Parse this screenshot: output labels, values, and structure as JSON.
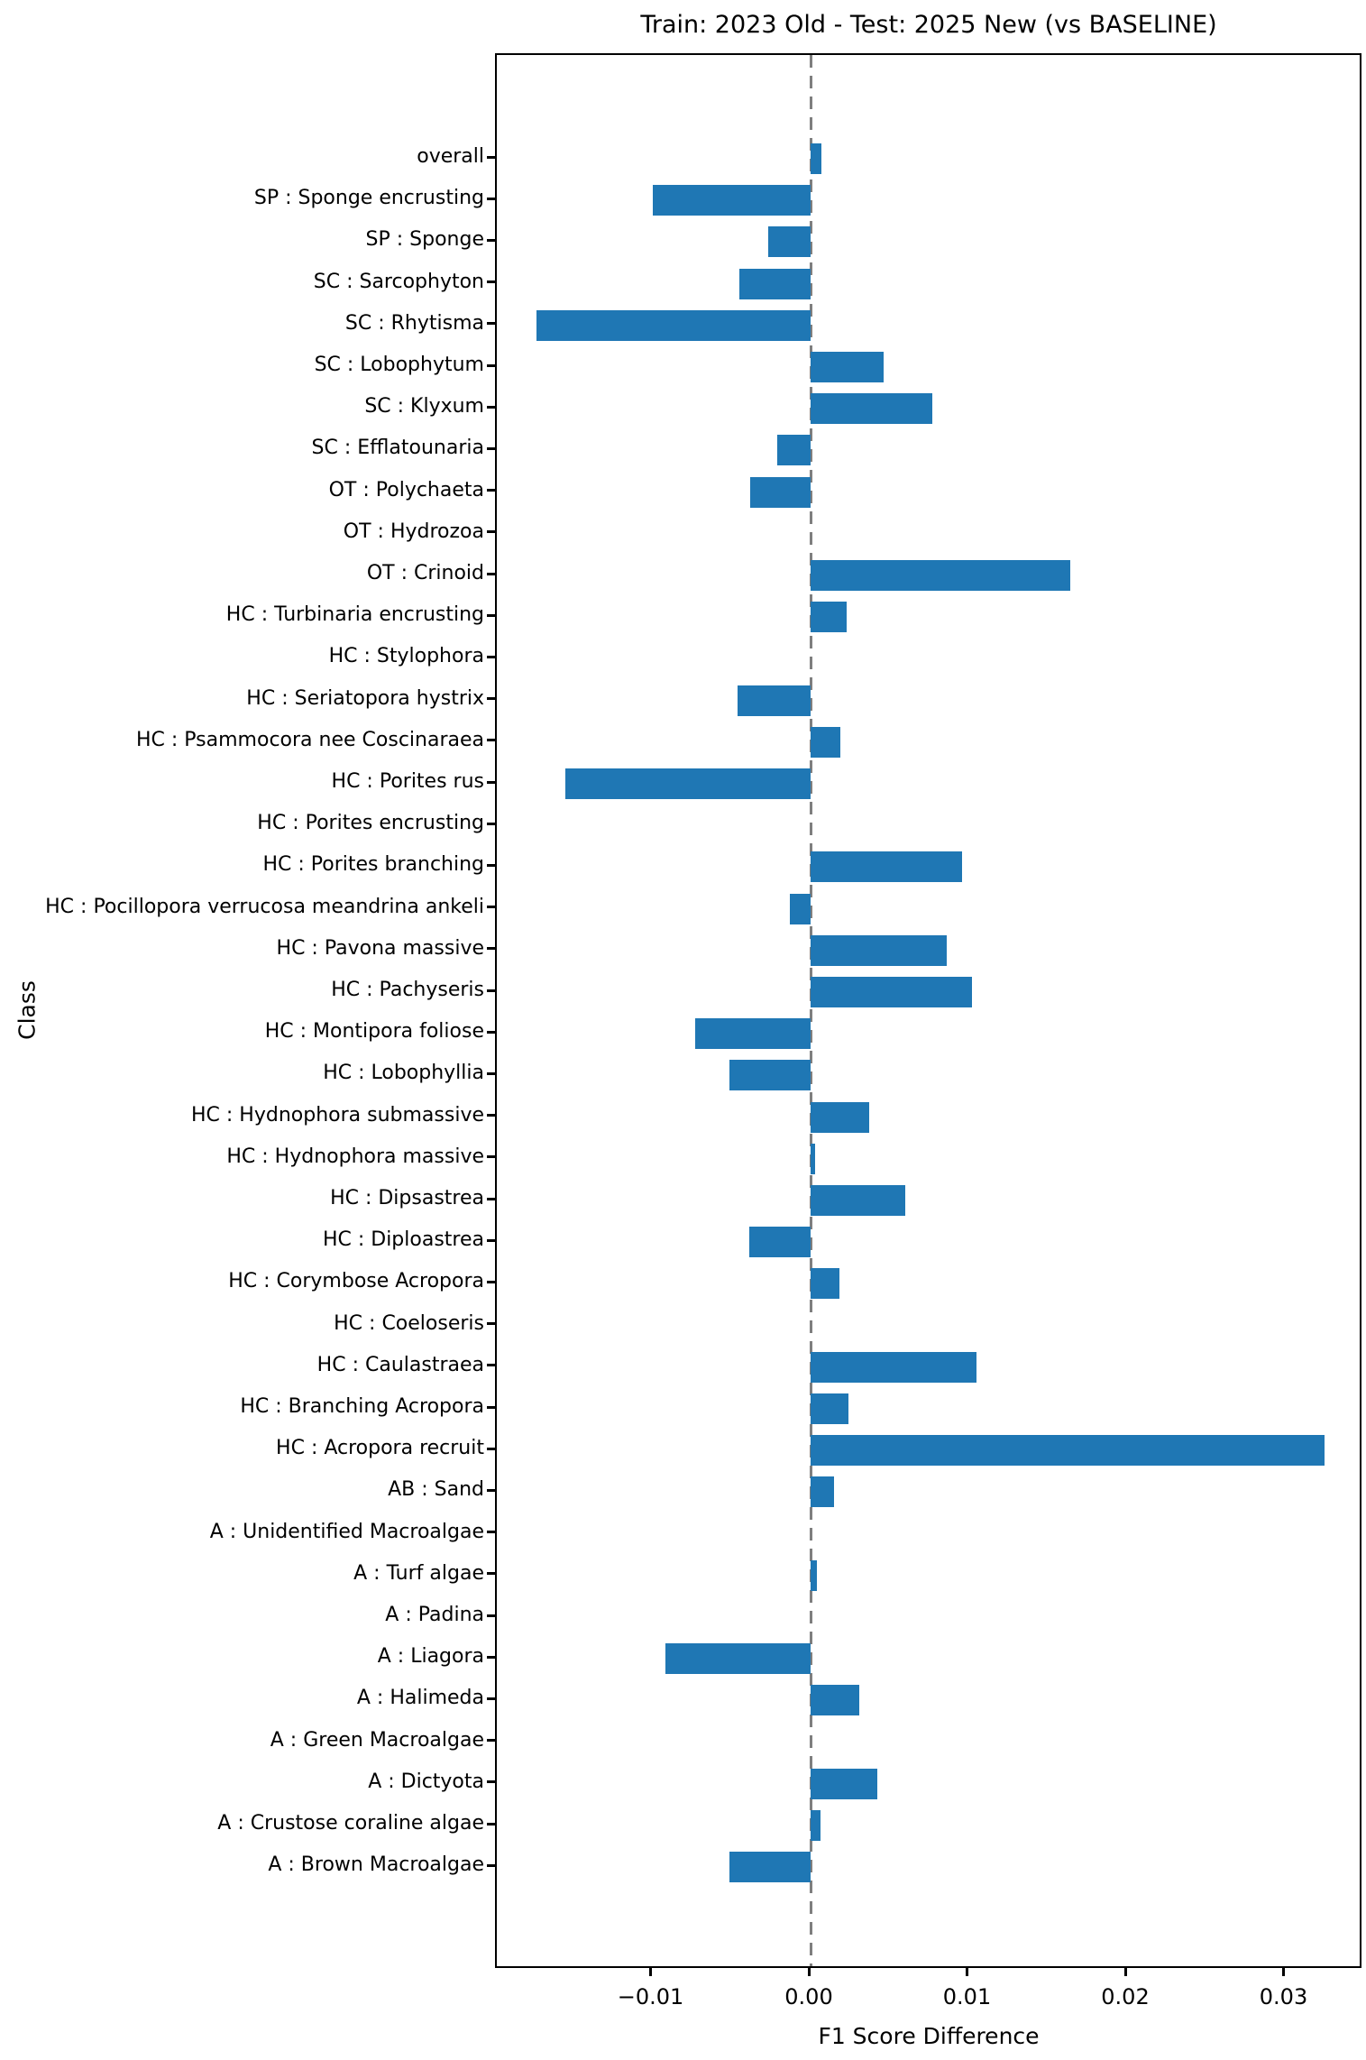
{
  "chart_data": {
    "type": "bar",
    "orientation": "horizontal",
    "title": "Train: 2023 Old - Test: 2025 New (vs BASELINE)",
    "xlabel": "F1 Score Difference",
    "ylabel": "Class",
    "xlim": [
      -0.0198,
      0.0349
    ],
    "grid": false,
    "bar_color": "#1f77b4",
    "zero_line": {
      "value": 0.0,
      "style": "dashed",
      "color": "#7f7f7f"
    },
    "x_ticks": [
      {
        "label": "−0.01",
        "value": -0.01
      },
      {
        "label": "0.00",
        "value": 0.0
      },
      {
        "label": "0.01",
        "value": 0.01
      },
      {
        "label": "0.02",
        "value": 0.02
      },
      {
        "label": "0.03",
        "value": 0.03
      }
    ],
    "categories": [
      "overall",
      "SP : Sponge encrusting",
      "SP : Sponge",
      "SC : Sarcophyton",
      "SC : Rhytisma",
      "SC : Lobophytum",
      "SC : Klyxum",
      "SC : Efflatounaria",
      "OT : Polychaeta",
      "OT : Hydrozoa",
      "OT : Crinoid",
      "HC : Turbinaria encrusting",
      "HC : Stylophora",
      "HC : Seriatopora hystrix",
      "HC : Psammocora nee Coscinaraea",
      "HC : Porites rus",
      "HC : Porites encrusting",
      "HC : Porites branching",
      "HC : Pocillopora verrucosa meandrina ankeli",
      "HC : Pavona massive",
      "HC : Pachyseris",
      "HC : Montipora foliose",
      "HC : Lobophyllia",
      "HC : Hydnophora submassive",
      "HC : Hydnophora massive",
      "HC : Dipsastrea",
      "HC : Diploastrea",
      "HC : Corymbose Acropora",
      "HC : Coeloseris",
      "HC : Caulastraea",
      "HC : Branching Acropora",
      "HC : Acropora recruit",
      "AB : Sand",
      "A : Unidentified Macroalgae",
      "A : Turf algae",
      "A : Padina",
      "A : Liagora",
      "A : Halimeda",
      "A : Green Macroalgae",
      "A : Dictyota",
      "A : Crustose coraline algae",
      "A : Brown Macroalgae"
    ],
    "values": [
      0.0007,
      -0.01,
      -0.0027,
      -0.0045,
      -0.0173,
      0.0046,
      0.0077,
      -0.0021,
      -0.0038,
      0.0,
      0.0164,
      0.0023,
      0.0,
      -0.0046,
      0.0019,
      -0.0155,
      0.0,
      0.0096,
      -0.0013,
      0.0086,
      0.0102,
      -0.0073,
      -0.0051,
      0.0037,
      0.0003,
      0.006,
      -0.0039,
      0.0018,
      0.0,
      0.0105,
      0.0024,
      0.0325,
      0.0015,
      0.0,
      0.0004,
      0.0,
      -0.0092,
      0.0031,
      0.0,
      0.0042,
      0.0006,
      -0.0051
    ]
  }
}
